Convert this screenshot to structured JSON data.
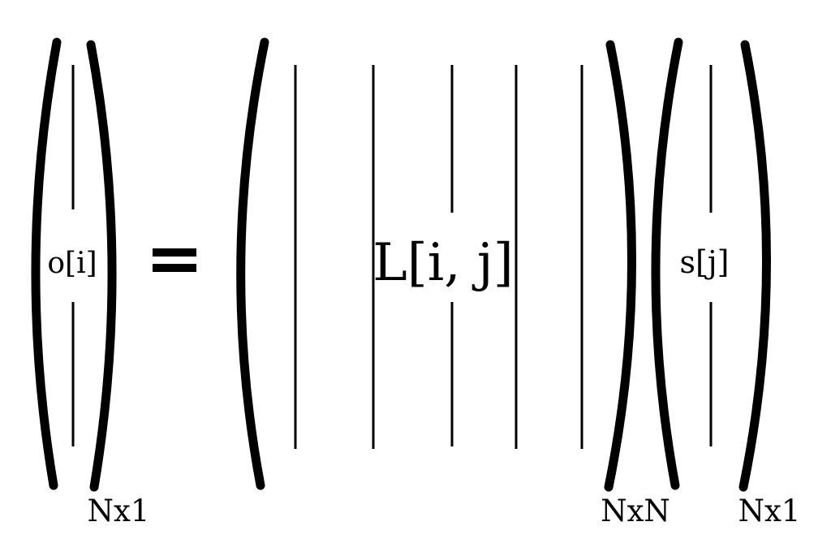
{
  "output_vector": {
    "element_label": "o[i]",
    "dimension_label": "Nx1"
  },
  "equals_sign": "=",
  "matrix": {
    "element_label": "L[i, j]",
    "dimension_label": "NxN"
  },
  "input_vector": {
    "element_label": "s[j]",
    "dimension_label": "Nx1"
  },
  "colors": {
    "ink": "#000000",
    "background": "#ffffff"
  }
}
